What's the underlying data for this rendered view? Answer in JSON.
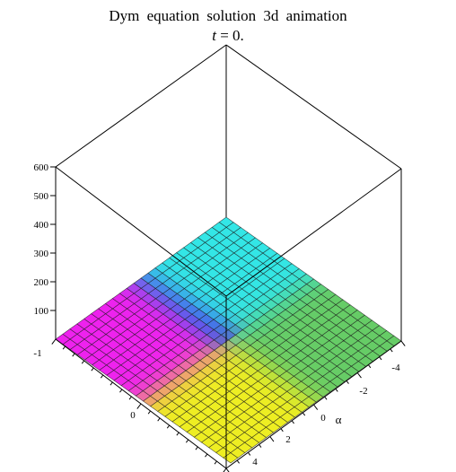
{
  "chart_data": {
    "type": "surface3d",
    "title": "Dym  equation  solution  3d animation",
    "subtitle_var": "t",
    "subtitle_rest": "= 0.",
    "zaxis": {
      "ticks": [
        100,
        200,
        300,
        400,
        500,
        600
      ]
    },
    "alpha_axis": {
      "label": "α",
      "ticks": [
        "-4",
        "-2",
        "0",
        "2",
        "4"
      ]
    },
    "left_axis": {
      "ticks": [
        "-1",
        "0"
      ]
    },
    "surface": {
      "grid_size": 24,
      "height": 0,
      "colors": {
        "magenta": "#ee22ee",
        "yellow": "#eeee22",
        "cyan": "#33e6e6",
        "blue": "#3838ee",
        "green": "#66cc66",
        "mesh": "#1a1a1a"
      }
    },
    "box": {
      "color": "#000000"
    }
  }
}
